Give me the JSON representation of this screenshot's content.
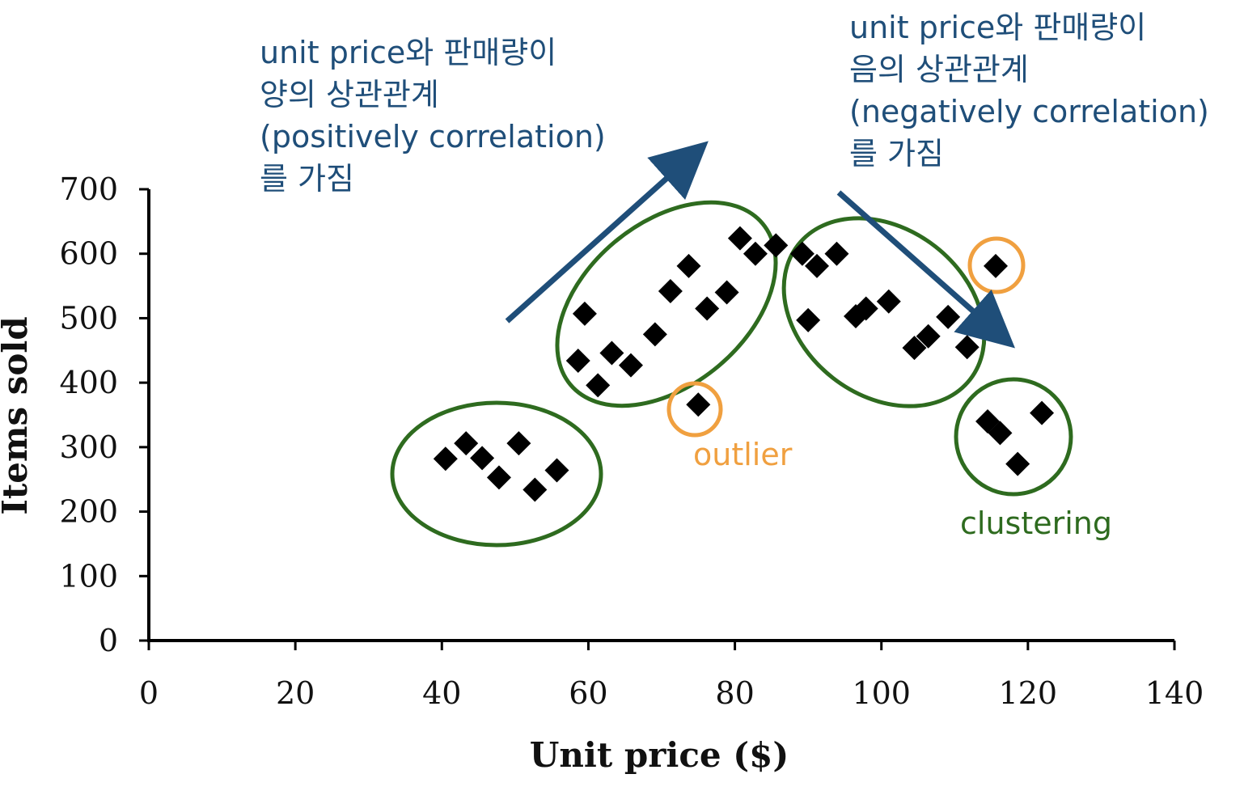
{
  "chart_data": {
    "type": "scatter",
    "title": "",
    "xlabel": "Unit price ($)",
    "ylabel": "Items sold",
    "xlim": [
      0,
      140
    ],
    "ylim": [
      0,
      700
    ],
    "xticks": [
      "0",
      "20",
      "40",
      "60",
      "80",
      "100",
      "120",
      "140"
    ],
    "yticks": [
      "0",
      "100",
      "200",
      "300",
      "400",
      "500",
      "600",
      "700"
    ],
    "grid": false,
    "series": [
      {
        "marker": "diamond",
        "color": "#000000",
        "points": [
          {
            "x": 40.5,
            "y": 282
          },
          {
            "x": 43.3,
            "y": 306
          },
          {
            "x": 45.5,
            "y": 283
          },
          {
            "x": 47.8,
            "y": 253
          },
          {
            "x": 50.5,
            "y": 306
          },
          {
            "x": 52.7,
            "y": 234
          },
          {
            "x": 55.7,
            "y": 264
          },
          {
            "x": 58.6,
            "y": 434
          },
          {
            "x": 59.5,
            "y": 507
          },
          {
            "x": 61.3,
            "y": 396
          },
          {
            "x": 63.2,
            "y": 446
          },
          {
            "x": 65.8,
            "y": 427
          },
          {
            "x": 69.1,
            "y": 475
          },
          {
            "x": 71.2,
            "y": 542
          },
          {
            "x": 73.7,
            "y": 581
          },
          {
            "x": 76.2,
            "y": 515
          },
          {
            "x": 78.9,
            "y": 540
          },
          {
            "x": 80.7,
            "y": 624
          },
          {
            "x": 82.8,
            "y": 600
          },
          {
            "x": 85.6,
            "y": 613
          },
          {
            "x": 75.0,
            "y": 366
          },
          {
            "x": 89.2,
            "y": 600
          },
          {
            "x": 90.0,
            "y": 497
          },
          {
            "x": 91.2,
            "y": 581
          },
          {
            "x": 93.9,
            "y": 600
          },
          {
            "x": 96.5,
            "y": 503
          },
          {
            "x": 97.9,
            "y": 515
          },
          {
            "x": 101.0,
            "y": 526
          },
          {
            "x": 104.5,
            "y": 454
          },
          {
            "x": 106.4,
            "y": 472
          },
          {
            "x": 109.1,
            "y": 502
          },
          {
            "x": 111.7,
            "y": 455
          },
          {
            "x": 115.6,
            "y": 581
          },
          {
            "x": 114.5,
            "y": 340
          },
          {
            "x": 116.2,
            "y": 322
          },
          {
            "x": 118.6,
            "y": 274
          },
          {
            "x": 121.9,
            "y": 353
          }
        ]
      }
    ],
    "annotations": {
      "positive_note": [
        "unit price와 판매량이",
        "양의 상관관계",
        "(positively correlation)",
        "를 가짐"
      ],
      "negative_note": [
        "unit price와 판매량이",
        "음의 상관관계",
        "(negatively correlation)",
        "를 가짐"
      ],
      "outlier_label": "outlier",
      "clustering_label": "clustering",
      "colors": {
        "note_text": "#1f4e79",
        "arrow": "#1f4e79",
        "cluster_ellipse": "#2e6b1f",
        "outlier_circle": "#f0a040",
        "outlier_text": "#f0a040",
        "clustering_text": "#2e6b1f"
      }
    }
  }
}
